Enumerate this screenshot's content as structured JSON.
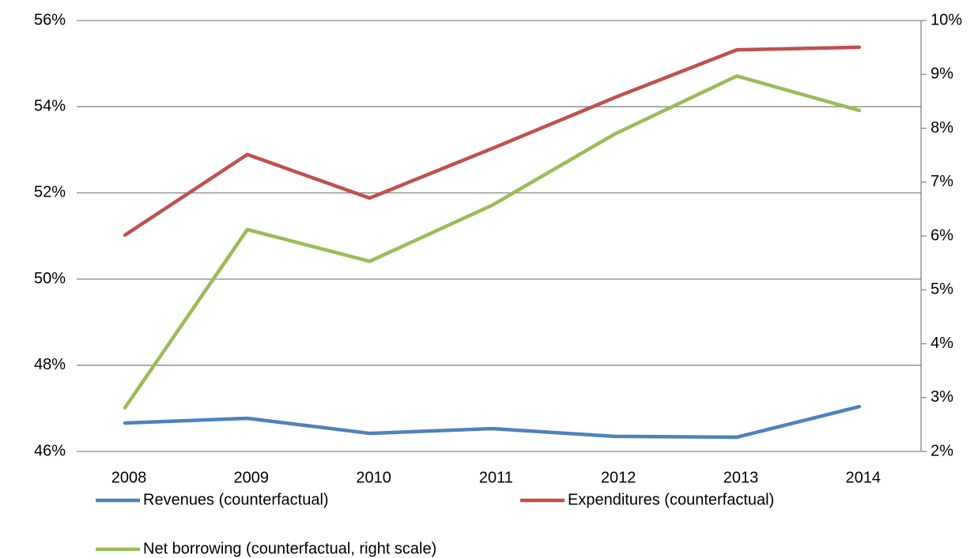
{
  "chart_data": {
    "type": "line",
    "categories": [
      "2008",
      "2009",
      "2010",
      "2011",
      "2012",
      "2013",
      "2014"
    ],
    "series": [
      {
        "name": "Revenues (counterfactual)",
        "color": "#4f81bd",
        "values": [
          46.66,
          46.77,
          46.42,
          46.53,
          46.35,
          46.33,
          47.04
        ]
      },
      {
        "name": "Expenditures (counterfactual)",
        "color": "#c0504d",
        "values": [
          51.02,
          52.89,
          51.88,
          53.03,
          54.21,
          55.32,
          55.38
        ]
      },
      {
        "name": "Net borrowing (counterfactual, right scale)",
        "color": "#9bbb59",
        "axis": "y2",
        "values": [
          2.81,
          6.12,
          5.53,
          6.57,
          7.89,
          8.97,
          8.33
        ]
      }
    ],
    "ylim": [
      46,
      56
    ],
    "yticks": [
      {
        "value": 46,
        "label": "46%"
      },
      {
        "value": 48,
        "label": "48%"
      },
      {
        "value": 50,
        "label": "50%"
      },
      {
        "value": 52,
        "label": "52%"
      },
      {
        "value": 54,
        "label": "54%"
      },
      {
        "value": 56,
        "label": "56%"
      }
    ],
    "y2lim": [
      2,
      10
    ],
    "y2ticks": [
      {
        "value": 2,
        "label": "2%"
      },
      {
        "value": 3,
        "label": "3%"
      },
      {
        "value": 4,
        "label": "4%"
      },
      {
        "value": 5,
        "label": "5%"
      },
      {
        "value": 6,
        "label": "6%"
      },
      {
        "value": 7,
        "label": "7%"
      },
      {
        "value": 8,
        "label": "8%"
      },
      {
        "value": 9,
        "label": "9%"
      },
      {
        "value": 10,
        "label": "10%"
      }
    ],
    "grid": true,
    "legend": "bottom"
  }
}
